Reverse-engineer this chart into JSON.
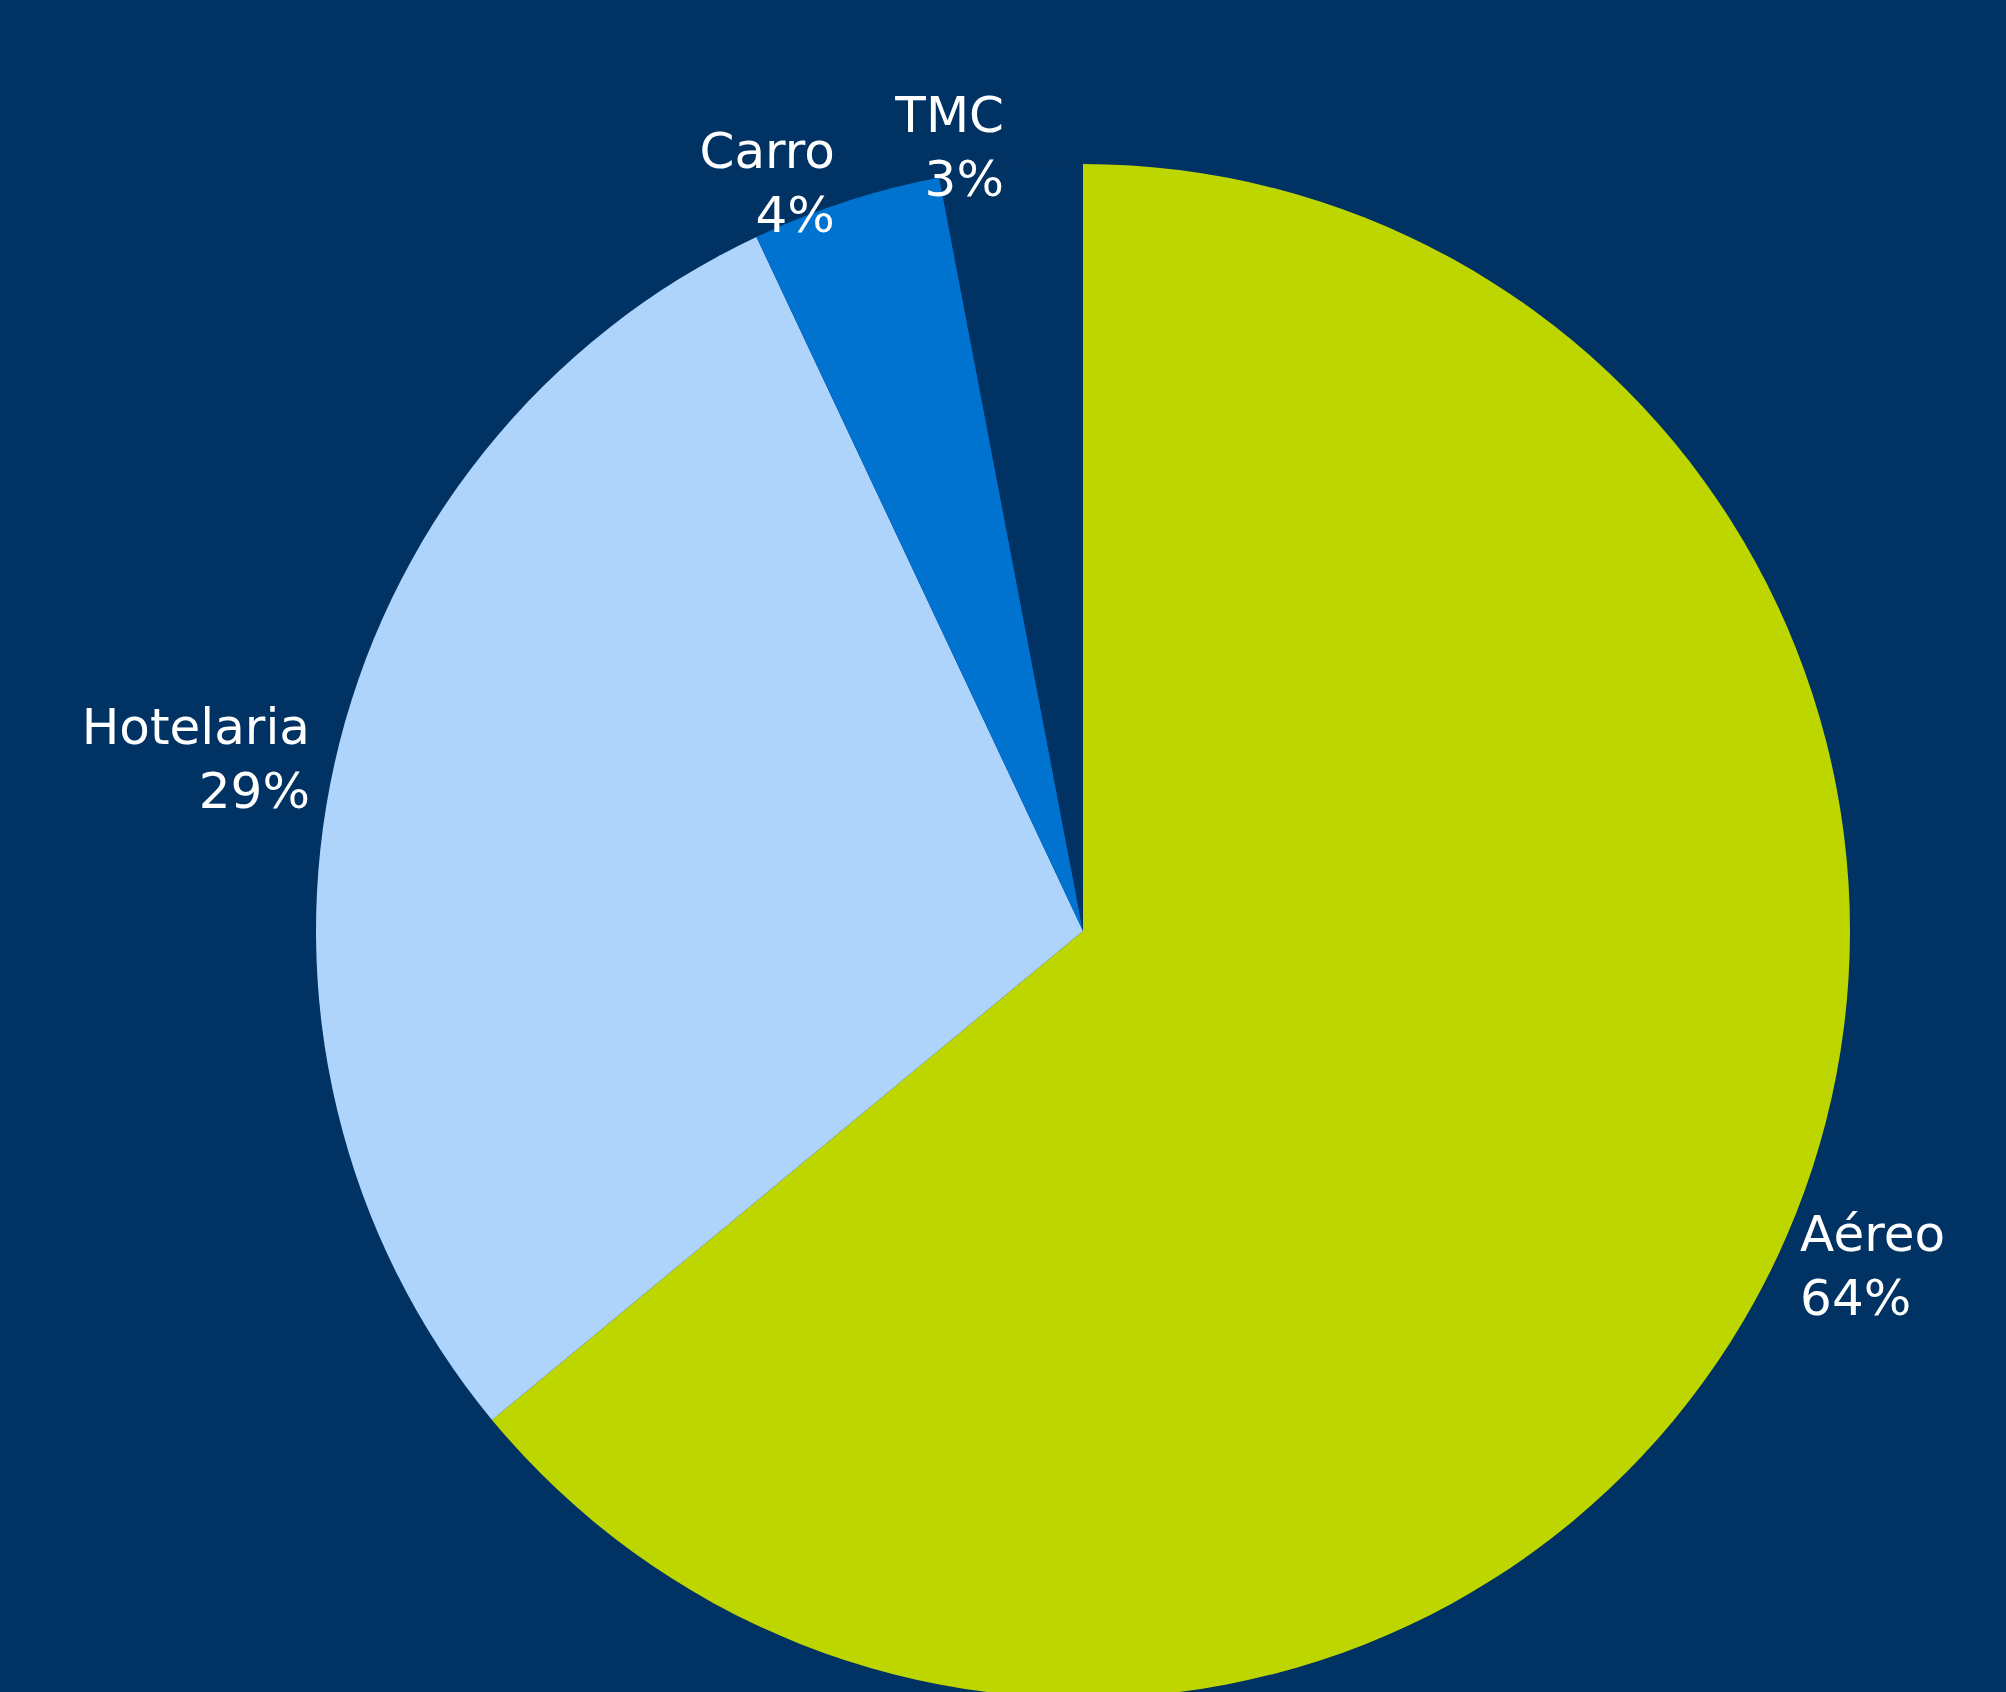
{
  "chart_data": {
    "type": "pie",
    "categories": [
      "Aéreo",
      "Hotelaria",
      "Carro",
      "TMC"
    ],
    "values": [
      64,
      29,
      4,
      3
    ],
    "colors": [
      "#bed600",
      "#aed4fc",
      "#0072d0",
      "#003263"
    ],
    "value_labels": [
      "64%",
      "29%",
      "4%",
      "3%"
    ],
    "legend": false
  }
}
